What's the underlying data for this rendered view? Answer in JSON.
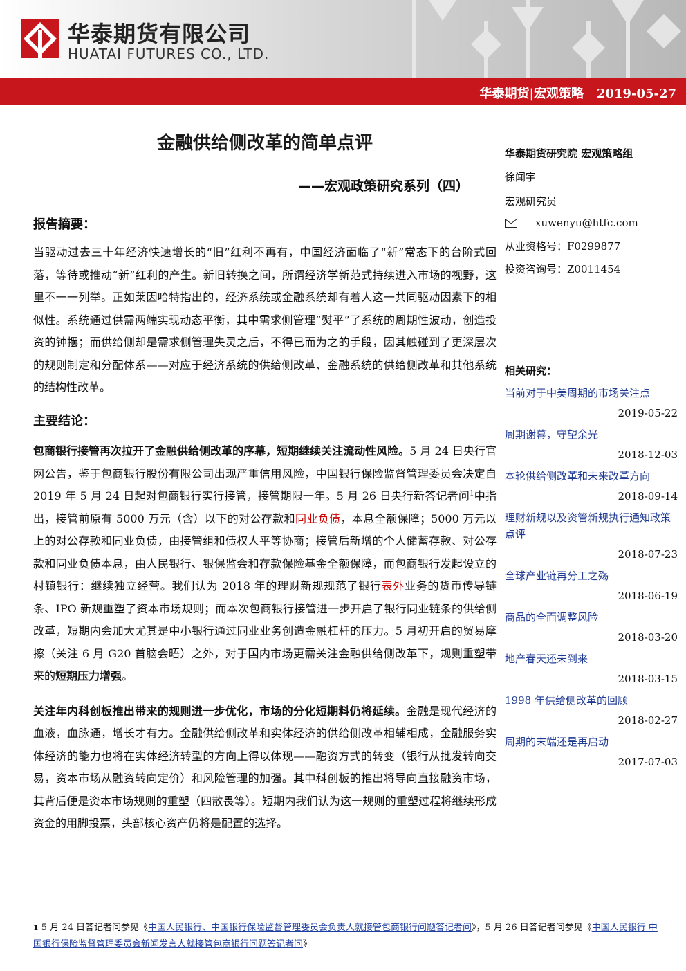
{
  "header": {
    "company_cn": "华泰期货有限公司",
    "company_en": "HUATAI FUTURES CO., LTD.",
    "section": "华泰期货|宏观策略",
    "date": "2019-05-27"
  },
  "title": "金融供给侧改革的简单点评",
  "subtitle": "——宏观政策研究系列（四）",
  "sidebar": {
    "team": "华泰期货研究院  宏观策略组",
    "author": "徐闻宇",
    "role": "宏观研究员",
    "email": "xuwenyu@htfc.com",
    "license": "从业资格号：F0299877",
    "advisory": "投资咨询号：Z0011454",
    "related_heading": "相关研究：",
    "related": [
      {
        "title": "当前对于中美周期的市场关注点",
        "date": "2019-05-22"
      },
      {
        "title": "周期谢幕，守望余光",
        "date": "2018-12-03"
      },
      {
        "title": "本轮供给侧改革和未来改革方向",
        "date": "2018-09-14"
      },
      {
        "title": "理财新规以及资管新规执行通知政策点评",
        "date": "2018-07-23"
      },
      {
        "title": "全球产业链再分工之殇",
        "date": "2018-06-19"
      },
      {
        "title": "商品的全面调整风险",
        "date": "2018-03-20"
      },
      {
        "title": "地产春天还未到来",
        "date": "2018-03-15"
      },
      {
        "title": "1998 年供给侧改革的回顾",
        "date": "2018-02-27"
      },
      {
        "title": "周期的末端还是再启动",
        "date": "2017-07-03"
      }
    ]
  },
  "summary": {
    "heading": "报告摘要：",
    "paragraphs": [
      [
        {
          "text": "当驱动过去三十年经济快速增长的“旧”红利不再有，中国经济面临了“新”常态下的台阶式回落，等待或推动“新”红利的产生。新旧转换之间，所谓经济学新范式持续进入市场的视野，这里不一一列举。正如莱因哈特指出的，经济系统或金融系统却有着人这一共同驱动因素下的相似性。系统通过供需两端实现动态平衡，其中需求侧管理“熨平”了系统的周期性波动，创造投资的钟摆；而供给侧却是需求侧管理失灵之后，不得已而为之的手段，因其触碰到了更深层次的规则制定和分配体系——对应于经济系统的供给侧改革、金融系统的供给侧改革和其他系统的结构性改革。",
          "style": "normal"
        }
      ]
    ]
  },
  "conclusions": {
    "heading": "主要结论：",
    "paragraphs": [
      [
        {
          "text": "包商银行接管再次拉开了金融供给侧改革的序幕，短期继续关注流动性风险。",
          "style": "bold"
        },
        {
          "text": "5 月 24 日央行官网公告，鉴于包商银行股份有限公司出现严重信用风险，中国银行保险监督管理委员会决定自 2019 年 5 月 24 日起对包商银行实行接管，接管期限一年。5 月 26 日央行新答记者问",
          "style": "normal"
        },
        {
          "text": "1",
          "style": "sup"
        },
        {
          "text": "中指出，接管前原有 5000 万元（含）以下的对公存款和",
          "style": "normal"
        },
        {
          "text": "同业负债",
          "style": "red"
        },
        {
          "text": "，本息全额保障；5000 万元以上的对公存款和同业负债，由接管组和债权人平等协商；接管后新增的个人储蓄存款、对公存款和同业负债本息，由人民银行、银保监会和存款保险基金全额保障，而包商银行发起设立的村镇银行：继续独立经营。我们认为 2018 年的理财新规规范了银行",
          "style": "normal"
        },
        {
          "text": "表外",
          "style": "red"
        },
        {
          "text": "业务的货币传导链条、IPO 新规重塑了资本市场规则；而本次包商银行接管进一步开启了银行同业链条的供给侧改革，短期内会加大尤其是中小银行通过同业业务创造金融杠杆的压力。5 月初开启的贸易摩擦（关注 6 月 G20 首脑会晤）之外，对于国内市场更需关注金融供给侧改革下，规则重塑带来的",
          "style": "normal"
        },
        {
          "text": "短期压力增强",
          "style": "bold"
        },
        {
          "text": "。",
          "style": "normal"
        }
      ],
      [
        {
          "text": "关注年内科创板推出带来的规则进一步优化，市场的分化短期料仍将延续。",
          "style": "bold"
        },
        {
          "text": "金融是现代经济的血液，血脉通，增长才有力。金融供给侧改革和实体经济的供给侧改革相辅相成，金融服务实体经济的能力也将在实体经济转型的方向上得以体现——融资方式的转变（银行从批发转向交易，资本市场从融资转向定价）和风险管理的加强。其中科创板的推出将导向直接融资市场，其背后便是资本市场规则的重塑（四散畏等）。短期内我们认为这一规则的重塑过程将继续形成资金的用脚投票，头部核心资产仍将是配置的选择。",
          "style": "normal"
        }
      ]
    ]
  },
  "footnote": [
    {
      "text": "1",
      "style": "num"
    },
    {
      "text": "  5 月 24 日答记者问参见《",
      "style": "normal"
    },
    {
      "text": "中国人民银行、中国银行保险监督管理委员会负责人就接管包商银行问题答记者问",
      "style": "link"
    },
    {
      "text": "》，5 月 26 日答记者问参见《",
      "style": "normal"
    },
    {
      "text": "中国人民银行 中国银行保险监督管理委员会新闻发言人就接管包商银行问题答记者问",
      "style": "link"
    },
    {
      "text": "》。",
      "style": "normal"
    }
  ]
}
